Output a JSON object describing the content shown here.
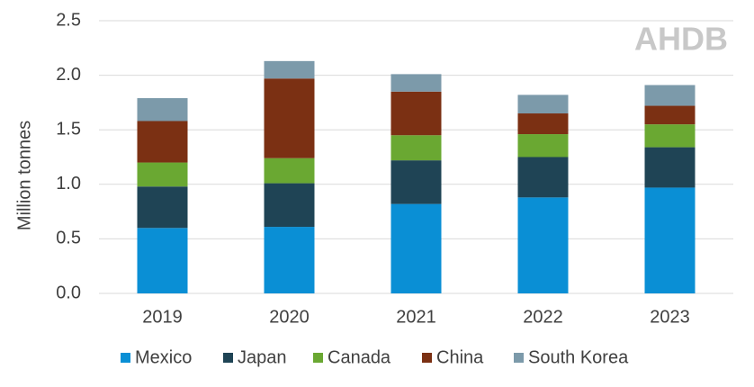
{
  "chart_data": {
    "type": "stacked-bar",
    "y_label": "Million tonnes",
    "logo": "AHDB",
    "categories": [
      "2019",
      "2020",
      "2021",
      "2022",
      "2023"
    ],
    "series": [
      {
        "name": "Mexico",
        "color": "#0a8fd5",
        "values": [
          0.6,
          0.61,
          0.82,
          0.88,
          0.97
        ]
      },
      {
        "name": "Japan",
        "color": "#1f4455",
        "values": [
          0.38,
          0.4,
          0.4,
          0.37,
          0.37
        ]
      },
      {
        "name": "Canada",
        "color": "#6aa832",
        "values": [
          0.22,
          0.23,
          0.23,
          0.21,
          0.21
        ]
      },
      {
        "name": "China",
        "color": "#7b3013",
        "values": [
          0.38,
          0.73,
          0.4,
          0.19,
          0.17
        ]
      },
      {
        "name": "South Korea",
        "color": "#7c9aaa",
        "values": [
          0.21,
          0.16,
          0.16,
          0.17,
          0.19
        ]
      }
    ],
    "ylim": [
      0,
      2.5
    ],
    "yticks": [
      {
        "value": 0,
        "label": "0.0"
      },
      0.5,
      {
        "value": 1,
        "label": "1.0"
      },
      1.5,
      {
        "value": 2,
        "label": "2.0"
      },
      2.5
    ],
    "grid": true
  }
}
